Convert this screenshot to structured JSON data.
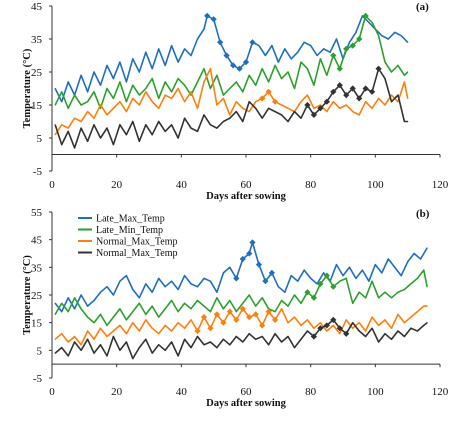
{
  "chart_data": [
    {
      "type": "line",
      "panel_label": "(a)",
      "xlabel": "Days after sowing",
      "ylabel": "Temperature (°C)",
      "xlim": [
        0,
        120
      ],
      "ylim": [
        -5,
        45
      ],
      "xticks": [
        0,
        20,
        40,
        60,
        80,
        100,
        120
      ],
      "yticks": [
        -5,
        5,
        15,
        25,
        35,
        45
      ],
      "grid": false,
      "colors": {
        "late_max": "#1f6fbf",
        "late_min": "#2ca02c",
        "normal_max": "#ff7f0e",
        "normal_min": "#333333"
      },
      "series": [
        {
          "key": "late_max",
          "color": "#1f6fbf",
          "marker_range": [
            48,
            62
          ],
          "x": [
            1,
            3,
            5,
            7,
            9,
            11,
            13,
            15,
            17,
            19,
            21,
            23,
            25,
            27,
            29,
            31,
            33,
            35,
            37,
            39,
            41,
            43,
            45,
            47,
            48,
            50,
            52,
            54,
            56,
            58,
            60,
            62,
            64,
            66,
            68,
            70,
            72,
            74,
            76,
            78,
            80,
            82,
            84,
            86,
            88,
            90,
            92,
            94,
            96,
            98,
            100,
            102,
            104,
            106,
            108,
            110
          ],
          "y": [
            20,
            16,
            22,
            18,
            24,
            19,
            25,
            21,
            27,
            23,
            28,
            22,
            29,
            25,
            31,
            26,
            32,
            27,
            33,
            28,
            32,
            30,
            35,
            38,
            42,
            41,
            34,
            30,
            27,
            26,
            28,
            34,
            33,
            30,
            33,
            28,
            32,
            29,
            31,
            34,
            33,
            30,
            32,
            31,
            35,
            29,
            34,
            37,
            42,
            40,
            38,
            36,
            35,
            37,
            36,
            34
          ]
        },
        {
          "key": "late_min",
          "color": "#2ca02c",
          "marker_range": [
            86,
            98
          ],
          "x": [
            1,
            3,
            5,
            7,
            9,
            11,
            13,
            15,
            17,
            19,
            21,
            23,
            25,
            27,
            29,
            31,
            33,
            35,
            37,
            39,
            41,
            43,
            45,
            47,
            49,
            51,
            53,
            55,
            57,
            59,
            61,
            63,
            65,
            67,
            69,
            71,
            73,
            75,
            77,
            79,
            81,
            83,
            85,
            87,
            89,
            91,
            93,
            95,
            97,
            99,
            101,
            103,
            105,
            107,
            109,
            110
          ],
          "y": [
            15,
            19,
            14,
            18,
            15,
            16,
            19,
            14,
            20,
            17,
            22,
            16,
            21,
            18,
            20,
            23,
            17,
            22,
            19,
            23,
            21,
            18,
            22,
            26,
            20,
            24,
            18,
            20,
            22,
            19,
            24,
            21,
            26,
            22,
            27,
            23,
            25,
            20,
            28,
            26,
            21,
            29,
            24,
            30,
            26,
            32,
            33,
            35,
            42,
            40,
            36,
            28,
            25,
            27,
            24,
            25
          ]
        },
        {
          "key": "normal_max",
          "color": "#ff7f0e",
          "marker_range": [
            64,
            70
          ],
          "x": [
            1,
            3,
            5,
            7,
            9,
            11,
            13,
            15,
            17,
            19,
            21,
            23,
            25,
            27,
            29,
            31,
            33,
            35,
            37,
            39,
            41,
            43,
            45,
            47,
            49,
            51,
            53,
            55,
            57,
            59,
            61,
            63,
            65,
            67,
            69,
            71,
            73,
            75,
            77,
            79,
            81,
            83,
            85,
            87,
            89,
            91,
            93,
            95,
            97,
            99,
            101,
            103,
            105,
            107,
            109,
            110
          ],
          "y": [
            6,
            9,
            8,
            11,
            10,
            13,
            11,
            15,
            12,
            14,
            16,
            13,
            17,
            15,
            19,
            16,
            14,
            18,
            17,
            20,
            16,
            19,
            14,
            22,
            26,
            15,
            17,
            12,
            16,
            14,
            13,
            16,
            17,
            19,
            16,
            15,
            14,
            13,
            16,
            18,
            14,
            15,
            13,
            16,
            14,
            15,
            13,
            12,
            16,
            14,
            17,
            15,
            18,
            16,
            22,
            17
          ]
        },
        {
          "key": "normal_min",
          "color": "#333333",
          "marker_range": [
            78,
            102
          ],
          "x": [
            1,
            3,
            5,
            7,
            9,
            11,
            13,
            15,
            17,
            19,
            21,
            23,
            25,
            27,
            29,
            31,
            33,
            35,
            37,
            39,
            41,
            43,
            45,
            47,
            49,
            51,
            53,
            55,
            57,
            59,
            61,
            63,
            65,
            67,
            69,
            71,
            73,
            75,
            77,
            79,
            81,
            83,
            85,
            87,
            89,
            91,
            93,
            95,
            97,
            99,
            101,
            103,
            105,
            107,
            109,
            110
          ],
          "y": [
            9,
            3,
            7,
            2,
            8,
            4,
            9,
            5,
            8,
            3,
            9,
            6,
            10,
            4,
            9,
            6,
            10,
            7,
            9,
            5,
            11,
            8,
            7,
            12,
            9,
            8,
            10,
            11,
            13,
            10,
            16,
            14,
            11,
            14,
            13,
            12,
            10,
            13,
            11,
            15,
            12,
            14,
            16,
            19,
            21,
            18,
            20,
            17,
            20,
            19,
            26,
            23,
            16,
            18,
            10,
            10
          ]
        }
      ]
    },
    {
      "type": "line",
      "panel_label": "(b)",
      "xlabel": "Days after sowing",
      "ylabel": "Temperature (°C)",
      "xlim": [
        0,
        120
      ],
      "ylim": [
        -5,
        55
      ],
      "xticks": [
        0,
        20,
        40,
        60,
        80,
        100,
        120
      ],
      "yticks": [
        -5,
        5,
        15,
        25,
        35,
        45,
        55
      ],
      "grid": false,
      "legend": {
        "placement": "top-left",
        "entries": [
          {
            "label": "Late_Max_Temp",
            "color": "#1f6fbf"
          },
          {
            "label": "Late_Min_Temp",
            "color": "#2ca02c"
          },
          {
            "label": "Normal_Max_Temp",
            "color": "#ff7f0e"
          },
          {
            "label": "Normal_Max_Temp",
            "color": "#333333"
          }
        ]
      },
      "series": [
        {
          "key": "late_max",
          "color": "#1f6fbf",
          "marker_range": [
            56,
            68
          ],
          "x": [
            1,
            3,
            5,
            7,
            9,
            11,
            13,
            15,
            17,
            19,
            21,
            23,
            25,
            27,
            29,
            31,
            33,
            35,
            37,
            39,
            41,
            43,
            45,
            47,
            49,
            51,
            53,
            55,
            57,
            59,
            61,
            62,
            64,
            66,
            68,
            70,
            72,
            74,
            76,
            78,
            80,
            82,
            84,
            86,
            88,
            90,
            92,
            94,
            96,
            98,
            100,
            102,
            104,
            106,
            108,
            110,
            112,
            114,
            116
          ],
          "y": [
            22,
            19,
            24,
            20,
            25,
            21,
            23,
            26,
            28,
            25,
            30,
            32,
            27,
            24,
            29,
            26,
            31,
            28,
            30,
            27,
            32,
            29,
            28,
            31,
            30,
            26,
            33,
            35,
            31,
            38,
            40,
            44,
            36,
            30,
            33,
            28,
            26,
            32,
            30,
            34,
            31,
            29,
            33,
            30,
            36,
            32,
            35,
            31,
            34,
            30,
            36,
            33,
            38,
            35,
            32,
            37,
            40,
            38,
            42
          ]
        },
        {
          "key": "late_min",
          "color": "#2ca02c",
          "marker_range": [
            78,
            88
          ],
          "x": [
            1,
            3,
            5,
            7,
            9,
            11,
            13,
            15,
            17,
            19,
            21,
            23,
            25,
            27,
            29,
            31,
            33,
            35,
            37,
            39,
            41,
            43,
            45,
            47,
            49,
            51,
            53,
            55,
            57,
            59,
            61,
            63,
            65,
            67,
            69,
            71,
            73,
            75,
            77,
            79,
            81,
            83,
            85,
            87,
            89,
            91,
            93,
            95,
            97,
            99,
            101,
            103,
            105,
            107,
            109,
            111,
            113,
            115,
            116
          ],
          "y": [
            18,
            22,
            19,
            24,
            20,
            17,
            15,
            18,
            14,
            17,
            20,
            16,
            19,
            22,
            18,
            21,
            17,
            20,
            23,
            19,
            22,
            20,
            23,
            21,
            19,
            24,
            20,
            23,
            19,
            22,
            25,
            21,
            24,
            20,
            19,
            23,
            21,
            25,
            22,
            26,
            24,
            29,
            32,
            28,
            30,
            31,
            22,
            26,
            24,
            30,
            24,
            26,
            24,
            26,
            27,
            29,
            31,
            34,
            28
          ]
        },
        {
          "key": "normal_max",
          "color": "#ff7f0e",
          "marker_range": [
            44,
            70
          ],
          "x": [
            1,
            3,
            5,
            7,
            9,
            11,
            13,
            15,
            17,
            19,
            21,
            23,
            25,
            27,
            29,
            31,
            33,
            35,
            37,
            39,
            41,
            43,
            45,
            47,
            49,
            51,
            53,
            55,
            57,
            59,
            61,
            63,
            65,
            67,
            69,
            71,
            73,
            75,
            77,
            79,
            81,
            83,
            85,
            87,
            89,
            91,
            93,
            95,
            97,
            99,
            101,
            103,
            105,
            107,
            109,
            111,
            113,
            115,
            116
          ],
          "y": [
            9,
            11,
            8,
            10,
            7,
            12,
            9,
            13,
            10,
            12,
            14,
            11,
            15,
            12,
            16,
            13,
            11,
            14,
            12,
            15,
            13,
            16,
            12,
            17,
            13,
            18,
            15,
            19,
            16,
            20,
            17,
            18,
            14,
            19,
            16,
            20,
            15,
            17,
            14,
            16,
            13,
            15,
            12,
            14,
            11,
            16,
            13,
            15,
            12,
            17,
            14,
            16,
            13,
            18,
            15,
            17,
            19,
            21,
            21
          ]
        },
        {
          "key": "normal_min",
          "color": "#333333",
          "marker_range": [
            80,
            92
          ],
          "x": [
            1,
            3,
            5,
            7,
            9,
            11,
            13,
            15,
            17,
            19,
            21,
            23,
            25,
            27,
            29,
            31,
            33,
            35,
            37,
            39,
            41,
            43,
            45,
            47,
            49,
            51,
            53,
            55,
            57,
            59,
            61,
            63,
            65,
            67,
            69,
            71,
            73,
            75,
            77,
            79,
            81,
            83,
            85,
            87,
            89,
            91,
            93,
            95,
            97,
            99,
            101,
            103,
            105,
            107,
            109,
            111,
            113,
            115,
            116
          ],
          "y": [
            4,
            6,
            3,
            8,
            5,
            9,
            4,
            7,
            3,
            10,
            5,
            8,
            2,
            6,
            9,
            4,
            7,
            5,
            8,
            3,
            9,
            6,
            10,
            7,
            8,
            6,
            9,
            7,
            10,
            8,
            11,
            9,
            10,
            7,
            11,
            8,
            10,
            6,
            9,
            12,
            10,
            13,
            14,
            16,
            13,
            11,
            15,
            12,
            10,
            13,
            8,
            11,
            9,
            12,
            10,
            13,
            12,
            14,
            15
          ]
        }
      ]
    }
  ]
}
